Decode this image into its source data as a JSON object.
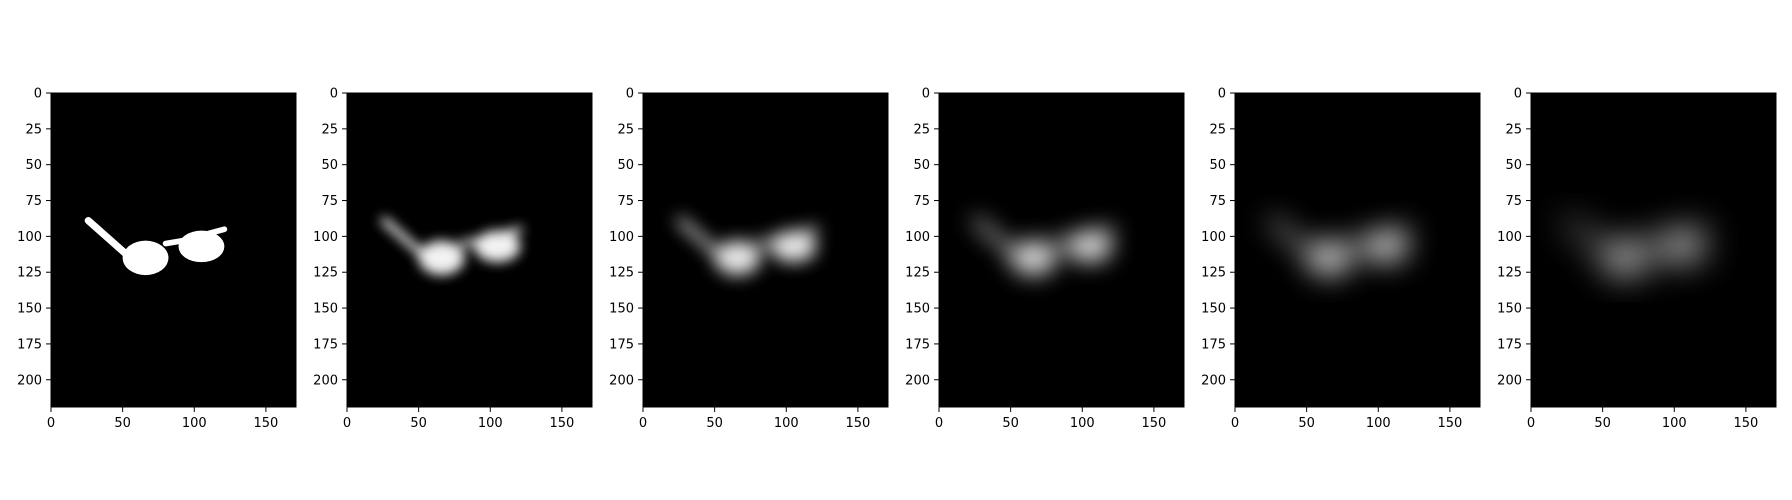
{
  "figure": {
    "background": "#ffffff",
    "panel_count": 6
  },
  "chart_data": [
    {
      "type": "heatmap",
      "title": "",
      "xlabel": "",
      "ylabel": "",
      "colormap": "gray",
      "xlim": [
        0,
        171
      ],
      "ylim": [
        219,
        0
      ],
      "xticks": [
        0,
        50,
        100,
        150
      ],
      "yticks": [
        0,
        25,
        50,
        75,
        100,
        125,
        150,
        175,
        200
      ],
      "blur_sigma": 0,
      "peak_intensity": 1.0,
      "content": "sharp white sunglasses silhouette on black"
    },
    {
      "type": "heatmap",
      "title": "",
      "xlabel": "",
      "ylabel": "",
      "colormap": "gray",
      "xlim": [
        0,
        171
      ],
      "ylim": [
        219,
        0
      ],
      "xticks": [
        0,
        50,
        100,
        150
      ],
      "yticks": [
        0,
        25,
        50,
        75,
        100,
        125,
        150,
        175,
        200
      ],
      "blur_sigma": 4,
      "peak_intensity": 0.95,
      "content": "blurred sunglasses silhouette"
    },
    {
      "type": "heatmap",
      "title": "",
      "xlabel": "",
      "ylabel": "",
      "colormap": "gray",
      "xlim": [
        0,
        171
      ],
      "ylim": [
        219,
        0
      ],
      "xticks": [
        0,
        50,
        100,
        150
      ],
      "yticks": [
        0,
        25,
        50,
        75,
        100,
        125,
        150,
        175,
        200
      ],
      "blur_sigma": 6,
      "peak_intensity": 0.9,
      "content": "blurred sunglasses silhouette"
    },
    {
      "type": "heatmap",
      "title": "",
      "xlabel": "",
      "ylabel": "",
      "colormap": "gray",
      "xlim": [
        0,
        171
      ],
      "ylim": [
        219,
        0
      ],
      "xticks": [
        0,
        50,
        100,
        150
      ],
      "yticks": [
        0,
        25,
        50,
        75,
        100,
        125,
        150,
        175,
        200
      ],
      "blur_sigma": 8,
      "peak_intensity": 0.85,
      "content": "blurred sunglasses silhouette"
    },
    {
      "type": "heatmap",
      "title": "",
      "xlabel": "",
      "ylabel": "",
      "colormap": "gray",
      "xlim": [
        0,
        171
      ],
      "ylim": [
        219,
        0
      ],
      "xticks": [
        0,
        50,
        100,
        150
      ],
      "yticks": [
        0,
        25,
        50,
        75,
        100,
        125,
        150,
        175,
        200
      ],
      "blur_sigma": 10,
      "peak_intensity": 0.8,
      "content": "blurred sunglasses silhouette"
    },
    {
      "type": "heatmap",
      "title": "",
      "xlabel": "",
      "ylabel": "",
      "colormap": "gray",
      "xlim": [
        0,
        171
      ],
      "ylim": [
        219,
        0
      ],
      "xticks": [
        0,
        50,
        100,
        150
      ],
      "yticks": [
        0,
        25,
        50,
        75,
        100,
        125,
        150,
        175,
        200
      ],
      "blur_sigma": 12,
      "peak_intensity": 0.75,
      "content": "blurred sunglasses silhouette"
    }
  ]
}
